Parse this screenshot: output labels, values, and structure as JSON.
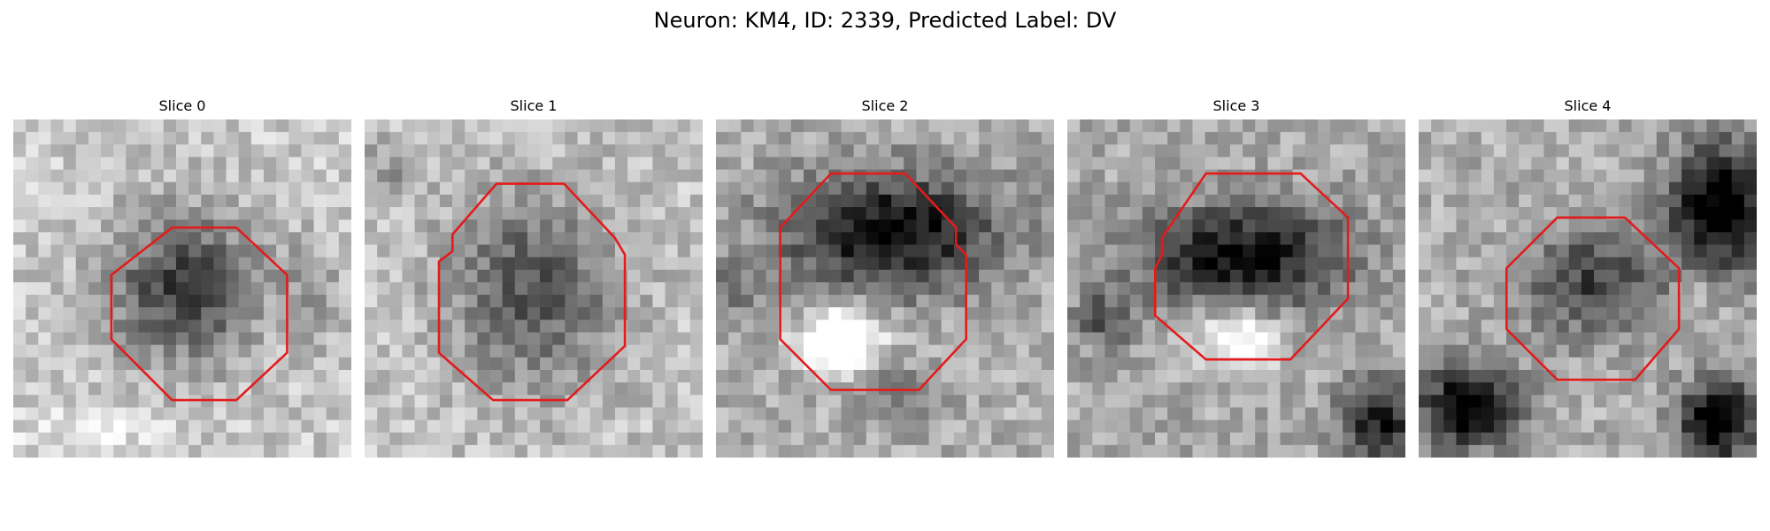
{
  "figure": {
    "suptitle": "Neuron: KM4, ID: 2339, Predicted Label: DV"
  },
  "panels": [
    {
      "title": "Slice 0"
    },
    {
      "title": "Slice 1"
    },
    {
      "title": "Slice 2"
    },
    {
      "title": "Slice 3"
    },
    {
      "title": "Slice 4"
    }
  ],
  "colors": {
    "background": "#ffffff",
    "outline": "#e31b1b"
  }
}
